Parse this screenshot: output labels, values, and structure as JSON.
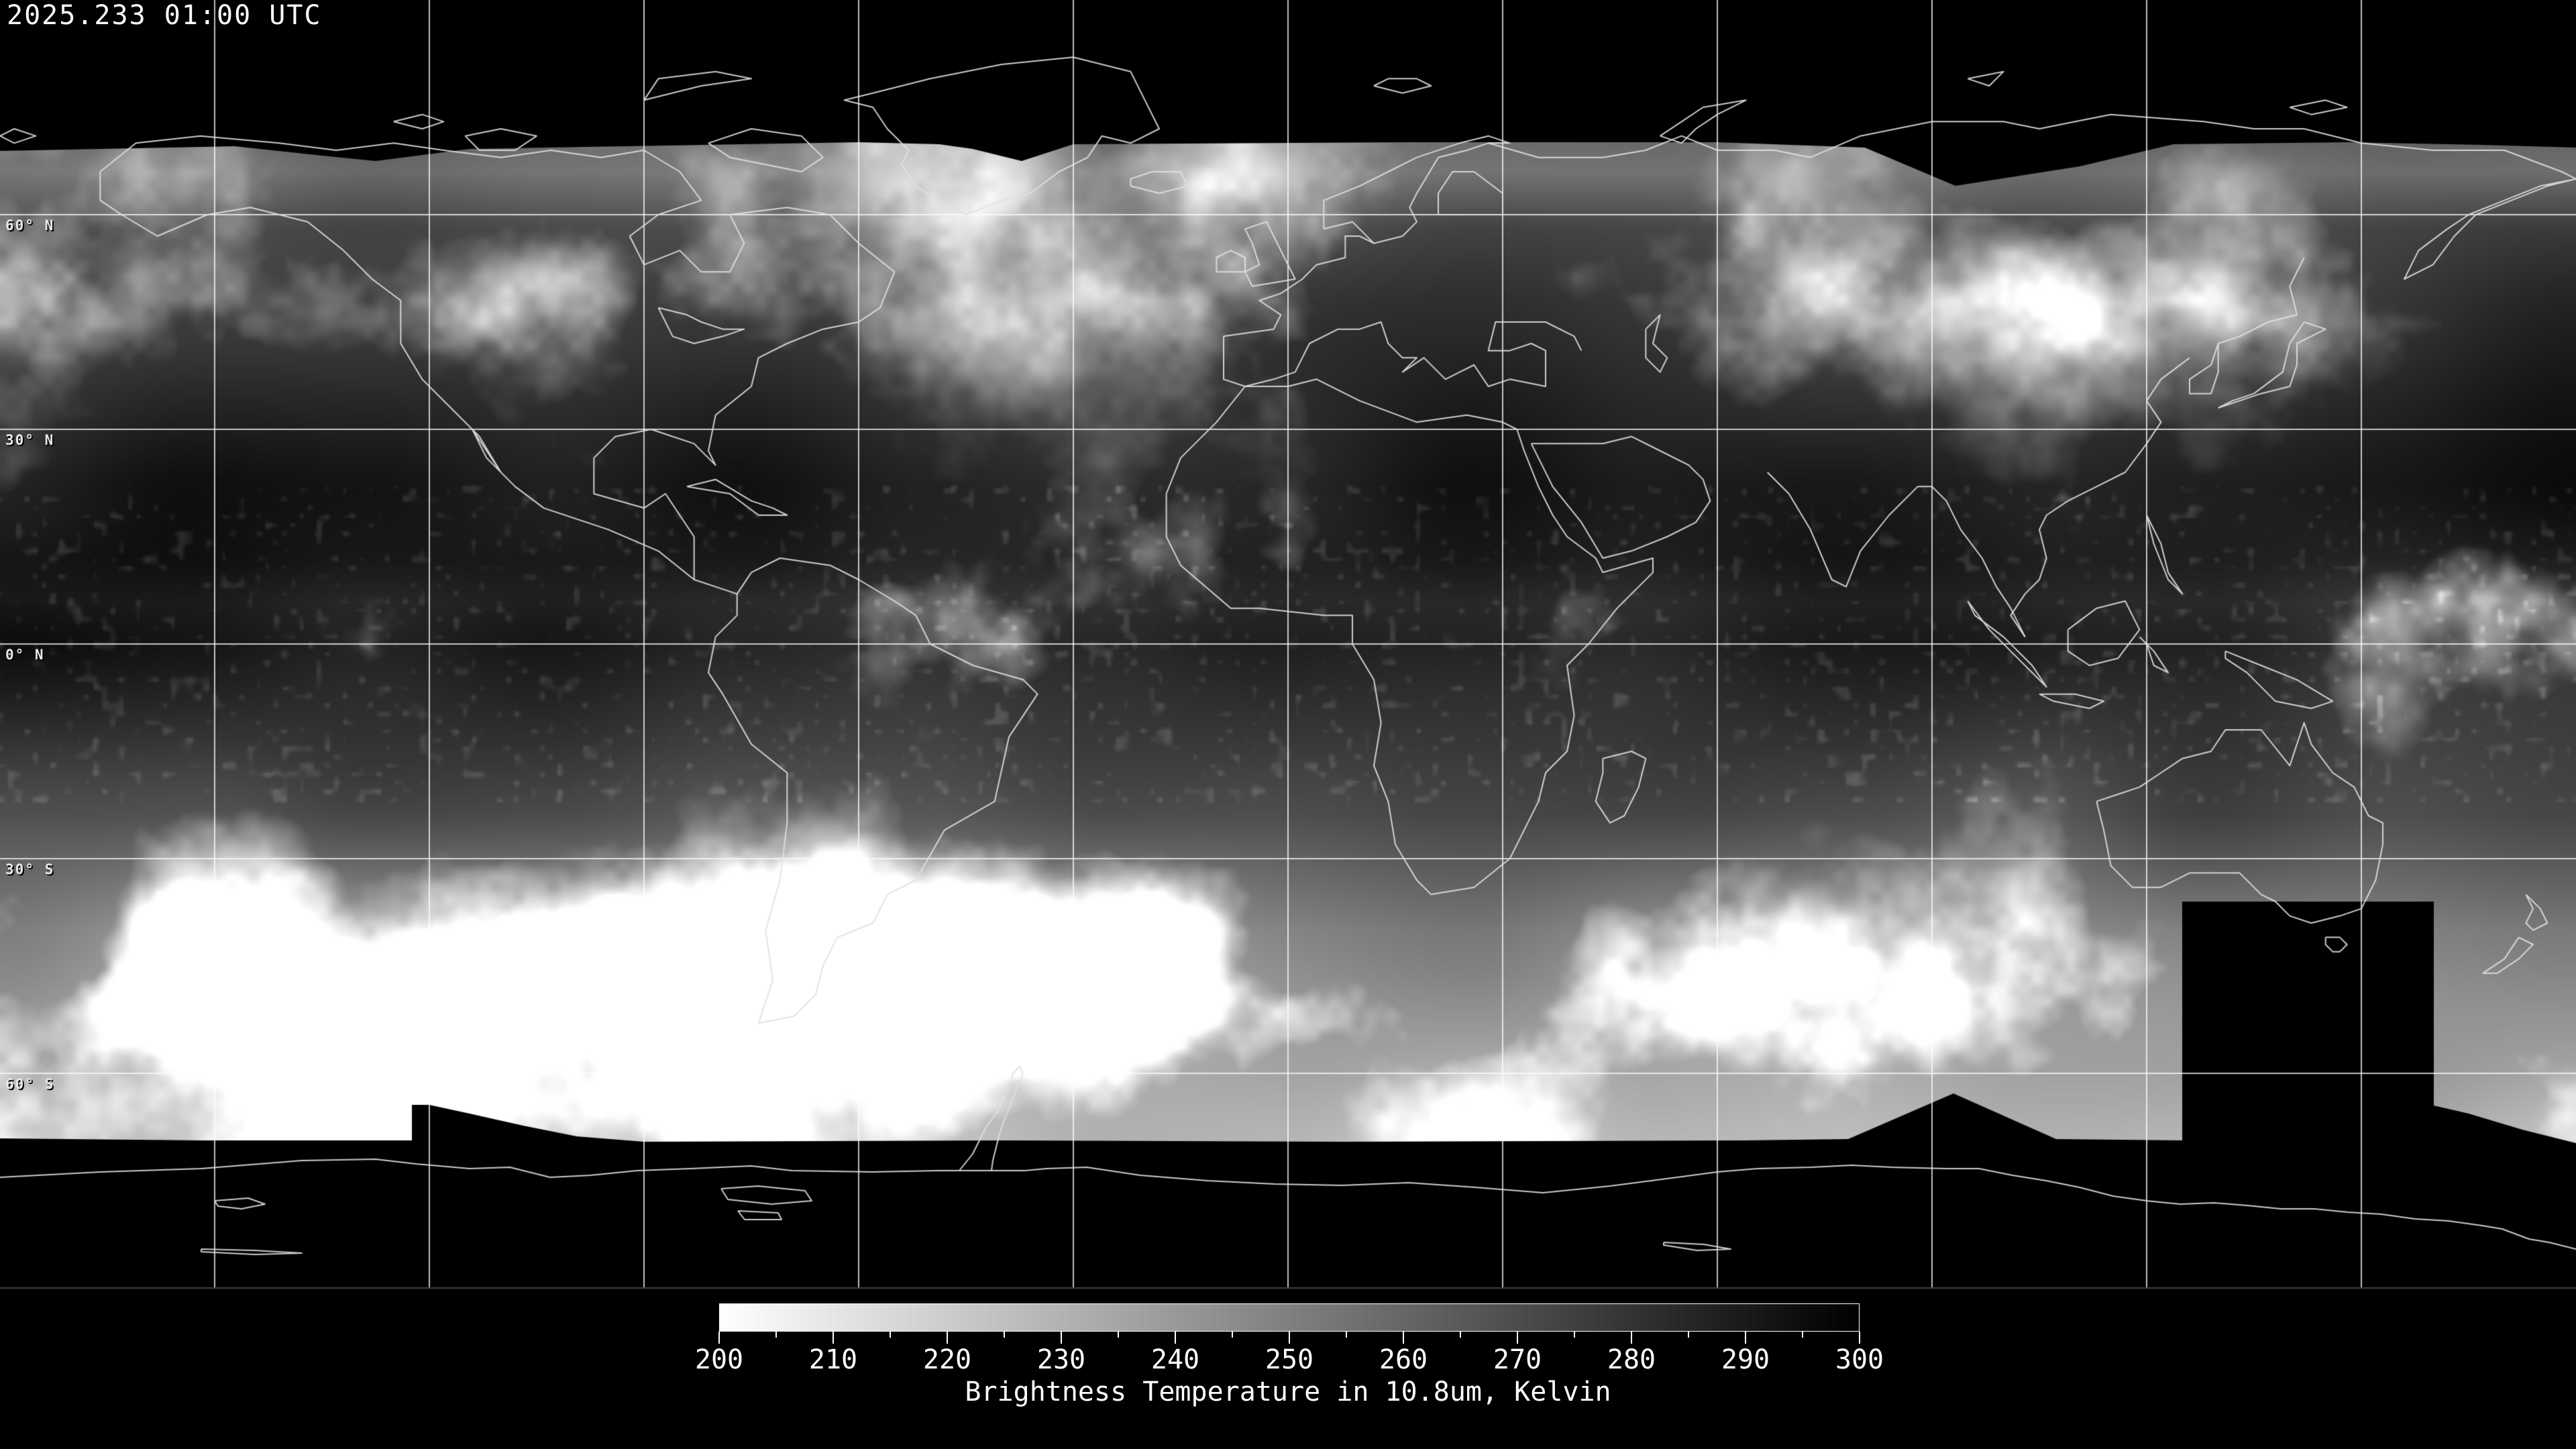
{
  "header": {
    "timestamp": "2025.233 01:00 UTC"
  },
  "map": {
    "latitude_labels": [
      {
        "label": "60° N",
        "lat": 60
      },
      {
        "label": "30° N",
        "lat": 30
      },
      {
        "label": "0° N",
        "lat": 0
      },
      {
        "label": "30° S",
        "lat": -30
      },
      {
        "label": "60° S",
        "lat": -60
      }
    ],
    "grid": {
      "lon_spacing_deg": 30,
      "lat_spacing_deg": 30,
      "line_color": "rgba(255,255,255,0.75)"
    },
    "no_data_color": "#000000",
    "coastline_color": "rgba(225,225,225,0.9)"
  },
  "colorbar": {
    "min": 200,
    "max": 300,
    "major_ticks": [
      200,
      210,
      220,
      230,
      240,
      250,
      260,
      270,
      280,
      290,
      300
    ],
    "minor_tick_step": 5,
    "gradient_start": "#ffffff",
    "gradient_end": "#000000",
    "caption": "Brightness Temperature in 10.8um, Kelvin"
  },
  "colors": {
    "background": "#000000",
    "text": "#ffffff",
    "label_gray": "#e8e8e8"
  }
}
